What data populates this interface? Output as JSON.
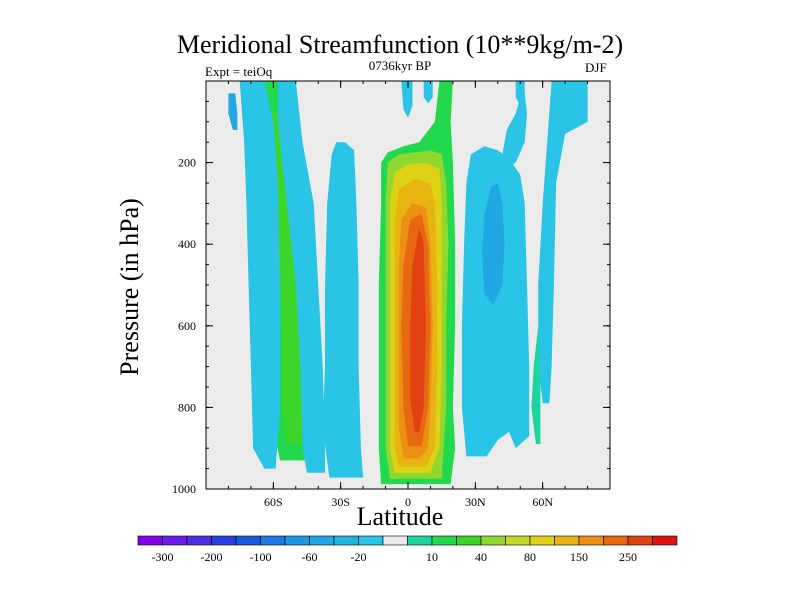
{
  "chart_data": {
    "type": "heatmap",
    "title": "Meridional Streamfunction (10**9kg/m-2)",
    "subtitle": "0736kyr BP",
    "expt_label": "Expt = teiOq",
    "season_label": "DJF",
    "xlabel": "Latitude",
    "ylabel": "Pressure (in hPa)",
    "xlim": [
      -90,
      90
    ],
    "ylim": [
      1000,
      0
    ],
    "x_ticks": [
      {
        "value": -60,
        "label": "60S"
      },
      {
        "value": -30,
        "label": "30S"
      },
      {
        "value": 0,
        "label": "0"
      },
      {
        "value": 30,
        "label": "30N"
      },
      {
        "value": 60,
        "label": "60N"
      }
    ],
    "y_ticks": [
      {
        "value": 200,
        "label": "200"
      },
      {
        "value": 400,
        "label": "400"
      },
      {
        "value": 600,
        "label": "600"
      },
      {
        "value": 800,
        "label": "800"
      },
      {
        "value": 1000,
        "label": "1000"
      }
    ],
    "colorbar": {
      "colors": [
        "#8400e8",
        "#6a1de8",
        "#4b2ee6",
        "#2a3fe0",
        "#1a5ae0",
        "#1e78e6",
        "#1f95e4",
        "#21a7e2",
        "#20b4e0",
        "#29c4e6",
        "#ebebeb",
        "#1cd4a0",
        "#22d84c",
        "#3cd62a",
        "#8ed830",
        "#c4d828",
        "#ded216",
        "#e8b412",
        "#ec9014",
        "#e86812",
        "#e24212",
        "#e01212"
      ],
      "labels": [
        "-300",
        "-200",
        "-100",
        "-60",
        "-20",
        "10",
        "40",
        "80",
        "150",
        "250"
      ]
    },
    "contour_regions": [
      {
        "name": "sh-tropical-core-outer",
        "fill": "#22d84c",
        "poly": [
          [
            -12,
            988
          ],
          [
            -13,
            900
          ],
          [
            -13,
            700
          ],
          [
            -13,
            500
          ],
          [
            -12,
            300
          ],
          [
            -12,
            200
          ],
          [
            -9,
            175
          ],
          [
            -2,
            160
          ],
          [
            5,
            150
          ],
          [
            12,
            100
          ],
          [
            14,
            0
          ],
          [
            20,
            0
          ],
          [
            19,
            100
          ],
          [
            20,
            200
          ],
          [
            21,
            400
          ],
          [
            21,
            600
          ],
          [
            20,
            800
          ],
          [
            21,
            900
          ],
          [
            19,
            988
          ]
        ]
      },
      {
        "name": "sh-tropical-core-2",
        "fill": "#8ed830",
        "poly": [
          [
            -8,
            975
          ],
          [
            -10,
            900
          ],
          [
            -10,
            700
          ],
          [
            -10,
            500
          ],
          [
            -10,
            300
          ],
          [
            -9,
            200
          ],
          [
            -4,
            180
          ],
          [
            3,
            175
          ],
          [
            10,
            170
          ],
          [
            15,
            180
          ],
          [
            17,
            250
          ],
          [
            18,
            400
          ],
          [
            17,
            600
          ],
          [
            17,
            800
          ],
          [
            15,
            975
          ]
        ]
      },
      {
        "name": "sh-tropical-core-3",
        "fill": "#ded216",
        "poly": [
          [
            -6,
            960
          ],
          [
            -8,
            900
          ],
          [
            -8,
            700
          ],
          [
            -8,
            500
          ],
          [
            -8,
            300
          ],
          [
            -6,
            225
          ],
          [
            0,
            205
          ],
          [
            8,
            200
          ],
          [
            14,
            215
          ],
          [
            15,
            300
          ],
          [
            15,
            500
          ],
          [
            15,
            700
          ],
          [
            14,
            900
          ],
          [
            10,
            960
          ]
        ]
      },
      {
        "name": "sh-tropical-core-4",
        "fill": "#e8b412",
        "poly": [
          [
            -4,
            945
          ],
          [
            -6,
            900
          ],
          [
            -6,
            700
          ],
          [
            -6,
            500
          ],
          [
            -6,
            350
          ],
          [
            -4,
            265
          ],
          [
            3,
            240
          ],
          [
            10,
            250
          ],
          [
            12,
            300
          ],
          [
            13,
            500
          ],
          [
            13,
            700
          ],
          [
            12,
            900
          ],
          [
            8,
            945
          ]
        ]
      },
      {
        "name": "sh-tropical-core-5",
        "fill": "#ec9014",
        "poly": [
          [
            -2,
            925
          ],
          [
            -4,
            850
          ],
          [
            -4,
            650
          ],
          [
            -4,
            450
          ],
          [
            -3,
            340
          ],
          [
            2,
            300
          ],
          [
            8,
            310
          ],
          [
            10,
            400
          ],
          [
            11,
            600
          ],
          [
            10,
            800
          ],
          [
            9,
            900
          ],
          [
            5,
            925
          ]
        ]
      },
      {
        "name": "sh-tropical-core-6",
        "fill": "#e86812",
        "poly": [
          [
            0,
            895
          ],
          [
            -2,
            800
          ],
          [
            -3,
            600
          ],
          [
            -2,
            450
          ],
          [
            1,
            340
          ],
          [
            6,
            325
          ],
          [
            9,
            400
          ],
          [
            10,
            600
          ],
          [
            9,
            800
          ],
          [
            6,
            895
          ]
        ]
      },
      {
        "name": "sh-tropical-core-7",
        "fill": "#e24212",
        "poly": [
          [
            3,
            860
          ],
          [
            1,
            780
          ],
          [
            1,
            600
          ],
          [
            2,
            450
          ],
          [
            5,
            360
          ],
          [
            7,
            400
          ],
          [
            8,
            600
          ],
          [
            7,
            800
          ],
          [
            5,
            860
          ]
        ]
      },
      {
        "name": "sh-subtropical-band",
        "fill": "#29c4e6",
        "poly": [
          [
            -35,
            972
          ],
          [
            -38,
            850
          ],
          [
            -37,
            700
          ],
          [
            -37,
            500
          ],
          [
            -36,
            300
          ],
          [
            -34,
            180
          ],
          [
            -32,
            150
          ],
          [
            -28,
            150
          ],
          [
            -24,
            170
          ],
          [
            -23,
            300
          ],
          [
            -22,
            500
          ],
          [
            -22,
            700
          ],
          [
            -21,
            900
          ],
          [
            -20,
            972
          ]
        ]
      },
      {
        "name": "sh-midlat-green-band",
        "fill": "#22d84c",
        "poly": [
          [
            -57,
            930
          ],
          [
            -60,
            850
          ],
          [
            -60,
            700
          ],
          [
            -62,
            500
          ],
          [
            -62,
            300
          ],
          [
            -63,
            150
          ],
          [
            -65,
            0
          ],
          [
            -55,
            0
          ],
          [
            -53,
            100
          ],
          [
            -48,
            300
          ],
          [
            -44,
            500
          ],
          [
            -42,
            700
          ],
          [
            -40,
            900
          ],
          [
            -42,
            930
          ]
        ]
      },
      {
        "name": "sh-midlat-green-inner",
        "fill": "#3cd62a",
        "poly": [
          [
            -54,
            890
          ],
          [
            -56,
            800
          ],
          [
            -56,
            600
          ],
          [
            -58,
            400
          ],
          [
            -60,
            200
          ],
          [
            -61,
            80
          ],
          [
            -57,
            80
          ],
          [
            -53,
            200
          ],
          [
            -49,
            400
          ],
          [
            -46,
            600
          ],
          [
            -45,
            800
          ],
          [
            -46,
            890
          ]
        ]
      },
      {
        "name": "sh-midlat-cyan-left",
        "fill": "#29c4e6",
        "poly": [
          [
            -64,
            950
          ],
          [
            -69,
            900
          ],
          [
            -70,
            700
          ],
          [
            -71,
            500
          ],
          [
            -72,
            300
          ],
          [
            -73,
            150
          ],
          [
            -75,
            0
          ],
          [
            -64,
            0
          ],
          [
            -60,
            100
          ],
          [
            -58,
            250
          ],
          [
            -57,
            500
          ],
          [
            -57,
            800
          ],
          [
            -59,
            950
          ]
        ]
      },
      {
        "name": "sh-midlat-cyan-right",
        "fill": "#29c4e6",
        "poly": [
          [
            -45,
            960
          ],
          [
            -47,
            900
          ],
          [
            -48,
            700
          ],
          [
            -50,
            500
          ],
          [
            -54,
            300
          ],
          [
            -56,
            200
          ],
          [
            -58,
            100
          ],
          [
            -58,
            0
          ],
          [
            -50,
            0
          ],
          [
            -47,
            150
          ],
          [
            -42,
            300
          ],
          [
            -40,
            500
          ],
          [
            -38,
            700
          ],
          [
            -37,
            900
          ],
          [
            -37,
            960
          ]
        ]
      },
      {
        "name": "nh-tropical-cyan",
        "fill": "#29c4e6",
        "poly": [
          [
            26,
            920
          ],
          [
            24,
            800
          ],
          [
            24,
            600
          ],
          [
            25,
            400
          ],
          [
            26,
            250
          ],
          [
            28,
            180
          ],
          [
            34,
            160
          ],
          [
            40,
            170
          ],
          [
            45,
            190
          ],
          [
            50,
            230
          ],
          [
            52,
            300
          ],
          [
            53,
            500
          ],
          [
            54,
            700
          ],
          [
            54,
            870
          ],
          [
            48,
            900
          ],
          [
            45,
            860
          ],
          [
            40,
            880
          ],
          [
            35,
            920
          ]
        ]
      },
      {
        "name": "nh-tropical-blue",
        "fill": "#21a7e2",
        "poly": [
          [
            34,
            520
          ],
          [
            33,
            420
          ],
          [
            34,
            330
          ],
          [
            37,
            260
          ],
          [
            40,
            250
          ],
          [
            42,
            300
          ],
          [
            43,
            400
          ],
          [
            42,
            500
          ],
          [
            38,
            550
          ]
        ]
      },
      {
        "name": "nh-top-cyan-left",
        "fill": "#29c4e6",
        "poly": [
          [
            42,
            180
          ],
          [
            44,
            120
          ],
          [
            48,
            80
          ],
          [
            50,
            40
          ],
          [
            52,
            30
          ],
          [
            53,
            80
          ],
          [
            52,
            150
          ],
          [
            48,
            200
          ],
          [
            45,
            210
          ]
        ]
      },
      {
        "name": "nh-midlat-cyan",
        "fill": "#29c4e6",
        "poly": [
          [
            60,
            790
          ],
          [
            58,
            700
          ],
          [
            58,
            500
          ],
          [
            60,
            300
          ],
          [
            62,
            150
          ],
          [
            64,
            0
          ],
          [
            80,
            0
          ],
          [
            80,
            100
          ],
          [
            70,
            130
          ],
          [
            66,
            250
          ],
          [
            65,
            500
          ],
          [
            64,
            700
          ],
          [
            63,
            790
          ]
        ]
      },
      {
        "name": "nh-midlat-green-drip",
        "fill": "#1cd4a0",
        "poly": [
          [
            57,
            890
          ],
          [
            55,
            800
          ],
          [
            56,
            700
          ],
          [
            58,
            600
          ],
          [
            59,
            750
          ],
          [
            59,
            890
          ]
        ]
      },
      {
        "name": "eq-top-cyan",
        "fill": "#29c4e6",
        "poly": [
          [
            -3,
            0
          ],
          [
            2,
            0
          ],
          [
            2,
            60
          ],
          [
            0,
            90
          ],
          [
            -2,
            70
          ]
        ]
      },
      {
        "name": "eq-top-cyan-2",
        "fill": "#29c4e6",
        "poly": [
          [
            7,
            0
          ],
          [
            11,
            0
          ],
          [
            11,
            40
          ],
          [
            9,
            55
          ],
          [
            7,
            40
          ]
        ]
      },
      {
        "name": "sh-left-strip-blue",
        "fill": "#21a7e2",
        "poly": [
          [
            -78,
            120
          ],
          [
            -80,
            80
          ],
          [
            -80,
            30
          ],
          [
            -77,
            30
          ],
          [
            -76,
            80
          ],
          [
            -76,
            120
          ]
        ]
      },
      {
        "name": "nh-right-tiny",
        "fill": "#29c4e6",
        "poly": [
          [
            48,
            0
          ],
          [
            52,
            0
          ],
          [
            52,
            40
          ],
          [
            50,
            60
          ],
          [
            48,
            40
          ]
        ]
      }
    ]
  }
}
